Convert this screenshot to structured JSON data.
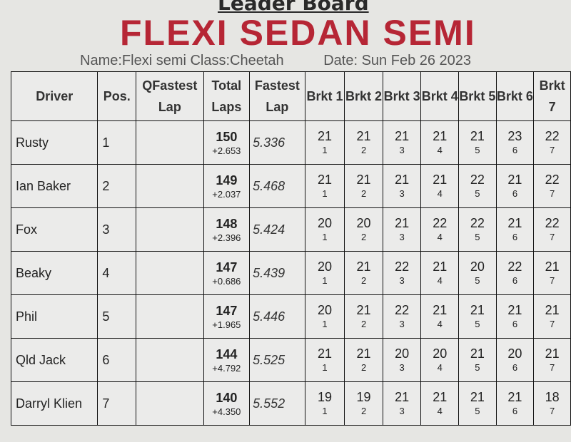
{
  "title": "Leader Board",
  "info": {
    "name": "Name:Flexi semi",
    "class": "Class:Cheetah",
    "date": "Date: Sun Feb 26 2023"
  },
  "handwriting": "FLEXI SEDAN SEMI",
  "columns": [
    "Driver",
    "Pos.",
    "QFastest Lap",
    "Total Laps",
    "Fastest Lap",
    "Brkt 1",
    "Brkt 2",
    "Brkt 3",
    "Brkt 4",
    "Brkt 5",
    "Brkt 6",
    "Brkt 7"
  ],
  "rows": [
    {
      "driver": "Rusty",
      "pos": "1",
      "qfastest": "",
      "laps": "150",
      "gap": "+2.653",
      "fastest": "5.336",
      "brackets": [
        [
          "21",
          "1"
        ],
        [
          "21",
          "2"
        ],
        [
          "21",
          "3"
        ],
        [
          "21",
          "4"
        ],
        [
          "21",
          "5"
        ],
        [
          "23",
          "6"
        ],
        [
          "22",
          "7"
        ]
      ]
    },
    {
      "driver": "Ian Baker",
      "pos": "2",
      "qfastest": "",
      "laps": "149",
      "gap": "+2.037",
      "fastest": "5.468",
      "brackets": [
        [
          "21",
          "1"
        ],
        [
          "21",
          "2"
        ],
        [
          "21",
          "3"
        ],
        [
          "21",
          "4"
        ],
        [
          "22",
          "5"
        ],
        [
          "21",
          "6"
        ],
        [
          "22",
          "7"
        ]
      ]
    },
    {
      "driver": "Fox",
      "pos": "3",
      "qfastest": "",
      "laps": "148",
      "gap": "+2.396",
      "fastest": "5.424",
      "brackets": [
        [
          "20",
          "1"
        ],
        [
          "20",
          "2"
        ],
        [
          "21",
          "3"
        ],
        [
          "22",
          "4"
        ],
        [
          "22",
          "5"
        ],
        [
          "21",
          "6"
        ],
        [
          "22",
          "7"
        ]
      ]
    },
    {
      "driver": "Beaky",
      "pos": "4",
      "qfastest": "",
      "laps": "147",
      "gap": "+0.686",
      "fastest": "5.439",
      "brackets": [
        [
          "20",
          "1"
        ],
        [
          "21",
          "2"
        ],
        [
          "22",
          "3"
        ],
        [
          "21",
          "4"
        ],
        [
          "20",
          "5"
        ],
        [
          "22",
          "6"
        ],
        [
          "21",
          "7"
        ]
      ]
    },
    {
      "driver": "Phil",
      "pos": "5",
      "qfastest": "",
      "laps": "147",
      "gap": "+1.965",
      "fastest": "5.446",
      "brackets": [
        [
          "20",
          "1"
        ],
        [
          "21",
          "2"
        ],
        [
          "22",
          "3"
        ],
        [
          "21",
          "4"
        ],
        [
          "21",
          "5"
        ],
        [
          "21",
          "6"
        ],
        [
          "21",
          "7"
        ]
      ]
    },
    {
      "driver": "Qld Jack",
      "pos": "6",
      "qfastest": "",
      "laps": "144",
      "gap": "+4.792",
      "fastest": "5.525",
      "brackets": [
        [
          "21",
          "1"
        ],
        [
          "21",
          "2"
        ],
        [
          "20",
          "3"
        ],
        [
          "20",
          "4"
        ],
        [
          "21",
          "5"
        ],
        [
          "20",
          "6"
        ],
        [
          "21",
          "7"
        ]
      ]
    },
    {
      "driver": "Darryl Klien",
      "pos": "7",
      "qfastest": "",
      "laps": "140",
      "gap": "+4.350",
      "fastest": "5.552",
      "brackets": [
        [
          "19",
          "1"
        ],
        [
          "19",
          "2"
        ],
        [
          "21",
          "3"
        ],
        [
          "21",
          "4"
        ],
        [
          "21",
          "5"
        ],
        [
          "21",
          "6"
        ],
        [
          "18",
          "7"
        ]
      ]
    }
  ]
}
